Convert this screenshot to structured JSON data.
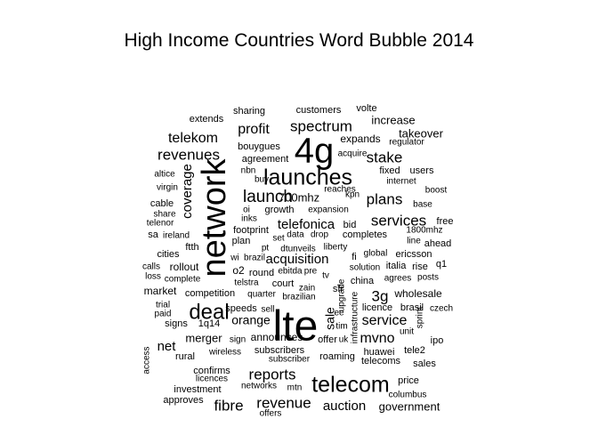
{
  "title": "High Income Countries Word Bubble 2014",
  "text_color": "#000000",
  "words": [
    {
      "text": "lte",
      "size": 6
    },
    {
      "text": "network",
      "size": 5
    },
    {
      "text": "4g",
      "size": 5
    },
    {
      "text": "telecom",
      "size": 4
    },
    {
      "text": "launches",
      "size": 4
    },
    {
      "text": "deal",
      "size": 4
    },
    {
      "text": "launch",
      "size": 3
    },
    {
      "text": "revenues",
      "size": 3
    },
    {
      "text": "revenue",
      "size": 3
    },
    {
      "text": "spectrum",
      "size": 3
    },
    {
      "text": "reports",
      "size": 3
    },
    {
      "text": "plans",
      "size": 3
    },
    {
      "text": "stake",
      "size": 3
    },
    {
      "text": "services",
      "size": 3
    },
    {
      "text": "telekom",
      "size": 3
    },
    {
      "text": "profit",
      "size": 3
    },
    {
      "text": "service",
      "size": 3
    },
    {
      "text": "mvno",
      "size": 3
    },
    {
      "text": "fibre",
      "size": 3
    },
    {
      "text": "auction",
      "size": 3
    },
    {
      "text": "coverage",
      "size": 3
    },
    {
      "text": "telefonica",
      "size": 2
    },
    {
      "text": "acquisition",
      "size": 2
    },
    {
      "text": "sale",
      "size": 2
    },
    {
      "text": "3g",
      "size": 2
    },
    {
      "text": "orange",
      "size": 2
    },
    {
      "text": "net",
      "size": 2
    },
    {
      "text": "merger",
      "size": 2
    },
    {
      "text": "700mhz",
      "size": 2
    },
    {
      "text": "takeover",
      "size": 2
    },
    {
      "text": "increase",
      "size": 2
    },
    {
      "text": "expands",
      "size": 2
    },
    {
      "text": "government",
      "size": 2
    },
    {
      "text": "bouygues",
      "size": 1
    },
    {
      "text": "agreement",
      "size": 1
    },
    {
      "text": "sharing",
      "size": 1
    },
    {
      "text": "customers",
      "size": 1
    },
    {
      "text": "volte",
      "size": 1
    },
    {
      "text": "extends",
      "size": 1
    },
    {
      "text": "regulator",
      "size": 1
    },
    {
      "text": "acquire",
      "size": 1
    },
    {
      "text": "fixed",
      "size": 1
    },
    {
      "text": "users",
      "size": 1
    },
    {
      "text": "internet",
      "size": 1
    },
    {
      "text": "nbn",
      "size": 1
    },
    {
      "text": "buy",
      "size": 1
    },
    {
      "text": "reaches",
      "size": 1
    },
    {
      "text": "altice",
      "size": 1
    },
    {
      "text": "virgin",
      "size": 1
    },
    {
      "text": "boost",
      "size": 1
    },
    {
      "text": "kpn",
      "size": 1
    },
    {
      "text": "cable",
      "size": 1
    },
    {
      "text": "base",
      "size": 1
    },
    {
      "text": "share",
      "size": 1
    },
    {
      "text": "oi",
      "size": 1
    },
    {
      "text": "growth",
      "size": 1
    },
    {
      "text": "expansion",
      "size": 1
    },
    {
      "text": "inks",
      "size": 1
    },
    {
      "text": "telenor",
      "size": 1
    },
    {
      "text": "bid",
      "size": 1
    },
    {
      "text": "free",
      "size": 1
    },
    {
      "text": "ireland",
      "size": 1
    },
    {
      "text": "footprint",
      "size": 1
    },
    {
      "text": "data",
      "size": 1
    },
    {
      "text": "drop",
      "size": 1
    },
    {
      "text": "completes",
      "size": 1
    },
    {
      "text": "1800mhz",
      "size": 1
    },
    {
      "text": "sa",
      "size": 1
    },
    {
      "text": "plan",
      "size": 1
    },
    {
      "text": "set",
      "size": 1
    },
    {
      "text": "line",
      "size": 1
    },
    {
      "text": "ahead",
      "size": 1
    },
    {
      "text": "ftth",
      "size": 1
    },
    {
      "text": "dtunveils",
      "size": 1
    },
    {
      "text": "liberty",
      "size": 1
    },
    {
      "text": "cities",
      "size": 1
    },
    {
      "text": "wi",
      "size": 1
    },
    {
      "text": "pt",
      "size": 1
    },
    {
      "text": "brazil",
      "size": 1
    },
    {
      "text": "fi",
      "size": 1
    },
    {
      "text": "global",
      "size": 1
    },
    {
      "text": "ericsson",
      "size": 1
    },
    {
      "text": "rollout",
      "size": 1
    },
    {
      "text": "calls",
      "size": 1
    },
    {
      "text": "o2",
      "size": 1
    },
    {
      "text": "round",
      "size": 1
    },
    {
      "text": "ebitda",
      "size": 1
    },
    {
      "text": "pre",
      "size": 1
    },
    {
      "text": "italia",
      "size": 1
    },
    {
      "text": "rise",
      "size": 1
    },
    {
      "text": "q1",
      "size": 1
    },
    {
      "text": "loss",
      "size": 1
    },
    {
      "text": "complete",
      "size": 1
    },
    {
      "text": "telstra",
      "size": 1
    },
    {
      "text": "solution",
      "size": 1
    },
    {
      "text": "agrees",
      "size": 1
    },
    {
      "text": "posts",
      "size": 1
    },
    {
      "text": "tv",
      "size": 1
    },
    {
      "text": "market",
      "size": 1
    },
    {
      "text": "china",
      "size": 1
    },
    {
      "text": "zain",
      "size": 1
    },
    {
      "text": "competition",
      "size": 1
    },
    {
      "text": "quarter",
      "size": 1
    },
    {
      "text": "court",
      "size": 1
    },
    {
      "text": "brazilian",
      "size": 1
    },
    {
      "text": "sfr",
      "size": 1
    },
    {
      "text": "wholesale",
      "size": 1
    },
    {
      "text": "trial",
      "size": 1
    },
    {
      "text": "upgrade",
      "size": 1
    },
    {
      "text": "licence",
      "size": 1
    },
    {
      "text": "brasil",
      "size": 1
    },
    {
      "text": "czech",
      "size": 1
    },
    {
      "text": "paid",
      "size": 1
    },
    {
      "text": "speeds",
      "size": 1
    },
    {
      "text": "sell",
      "size": 1
    },
    {
      "text": "ee",
      "size": 1
    },
    {
      "text": "signs",
      "size": 1
    },
    {
      "text": "1q14",
      "size": 1
    },
    {
      "text": "tim",
      "size": 1
    },
    {
      "text": "sprint",
      "size": 1
    },
    {
      "text": "unit",
      "size": 1
    },
    {
      "text": "infrastructure",
      "size": 1
    },
    {
      "text": "sign",
      "size": 1
    },
    {
      "text": "announces",
      "size": 1
    },
    {
      "text": "offer",
      "size": 1
    },
    {
      "text": "uk",
      "size": 1
    },
    {
      "text": "ipo",
      "size": 1
    },
    {
      "text": "rural",
      "size": 1
    },
    {
      "text": "wireless",
      "size": 1
    },
    {
      "text": "subscribers",
      "size": 1
    },
    {
      "text": "huawei",
      "size": 1
    },
    {
      "text": "tele2",
      "size": 1
    },
    {
      "text": "access",
      "size": 1
    },
    {
      "text": "subscriber",
      "size": 1
    },
    {
      "text": "roaming",
      "size": 1
    },
    {
      "text": "telecoms",
      "size": 1
    },
    {
      "text": "sales",
      "size": 1
    },
    {
      "text": "confirms",
      "size": 1
    },
    {
      "text": "licences",
      "size": 1
    },
    {
      "text": "investment",
      "size": 1
    },
    {
      "text": "price",
      "size": 1
    },
    {
      "text": "networks",
      "size": 1
    },
    {
      "text": "mtn",
      "size": 1
    },
    {
      "text": "columbus",
      "size": 1
    },
    {
      "text": "approves",
      "size": 1
    },
    {
      "text": "offers",
      "size": 1
    }
  ]
}
